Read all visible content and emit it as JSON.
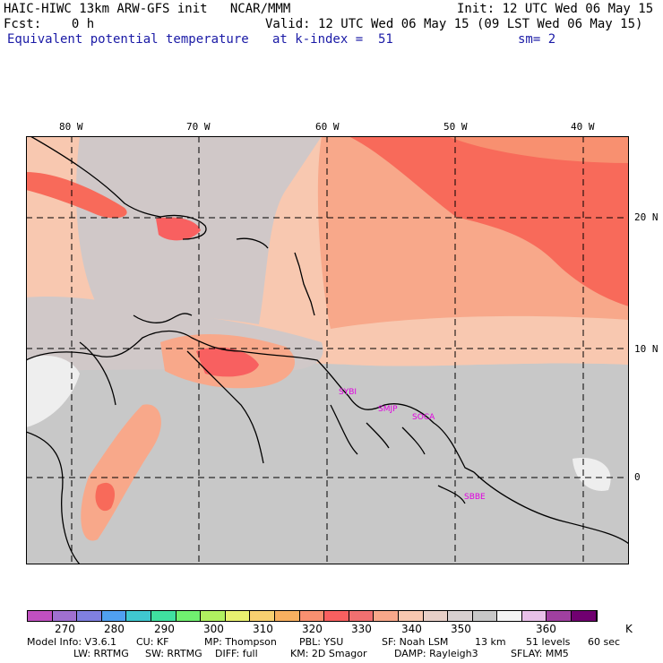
{
  "header": {
    "line1_left": "HAIC-HIWC 13km ARW-GFS init   NCAR/MMM",
    "line1_right": "Init: 12 UTC Wed 06 May 15",
    "line2_left": "Fcst:    0 h",
    "line2_right": "Valid: 12 UTC Wed 06 May 15 (09 LST Wed 06 May 15)",
    "line3_field": "Equivalent potential temperature",
    "line3_level": "at k-index =  51",
    "line3_smooth": "sm= 2"
  },
  "map": {
    "lon_labels": [
      "80 W",
      "70 W",
      "60 W",
      "50 W",
      "40 W"
    ],
    "lat_labels": [
      "20 N",
      "10 N",
      "0"
    ],
    "stations": [
      "SYBI",
      "SMJP",
      "SOCA",
      "SBBE"
    ]
  },
  "colorbar": {
    "colors": [
      "#c050c0",
      "#a070d0",
      "#8080e0",
      "#50a0f0",
      "#40c8d0",
      "#40e0a0",
      "#70f070",
      "#b0f060",
      "#e8f070",
      "#f8d070",
      "#f8b060",
      "#f89070",
      "#f86060",
      "#f07070",
      "#f8a88a",
      "#f8c8b0",
      "#e8d0c8",
      "#d8d0d0",
      "#c8c8c8",
      "#f4f4f4",
      "#e8c0e8",
      "#a040a0",
      "#700070"
    ],
    "labels": [
      "270",
      "280",
      "290",
      "300",
      "310",
      "320",
      "330",
      "340",
      "350",
      "360",
      "K"
    ]
  },
  "footer": {
    "line1": [
      "Model Info: V3.6.1",
      "CU: KF",
      "MP: Thompson",
      "PBL: YSU",
      "SF: Noah LSM",
      "13 km",
      "51 levels",
      "60 sec"
    ],
    "line2": [
      "LW: RRTMG",
      "SW: RRTMG",
      "DIFF: full",
      "KM: 2D Smagor",
      "DAMP: Rayleigh3",
      "SFLAY: MM5"
    ]
  }
}
